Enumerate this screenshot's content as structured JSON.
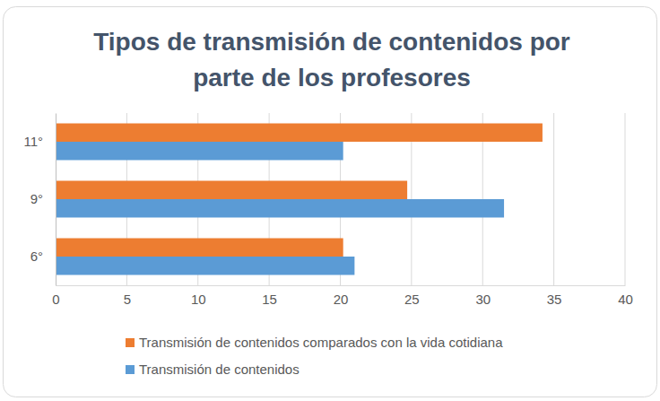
{
  "chart_data": {
    "type": "bar",
    "orientation": "horizontal",
    "title": "Tipos de transmisión de contenidos por parte de los profesores",
    "categories": [
      "6°",
      "9°",
      "11°"
    ],
    "series": [
      {
        "name": "Transmisión de contenidos comparados con la vida cotidiana",
        "color": "#ed7d31",
        "values": [
          20.2,
          24.7,
          34.2
        ]
      },
      {
        "name": "Transmisión de contenidos",
        "color": "#5b9bd5",
        "values": [
          21,
          31.5,
          20.2
        ]
      }
    ],
    "xlim": [
      0,
      40
    ],
    "xticks": [
      0,
      5,
      10,
      15,
      20,
      25,
      30,
      35,
      40
    ],
    "grid": true,
    "legend": "bottom"
  }
}
